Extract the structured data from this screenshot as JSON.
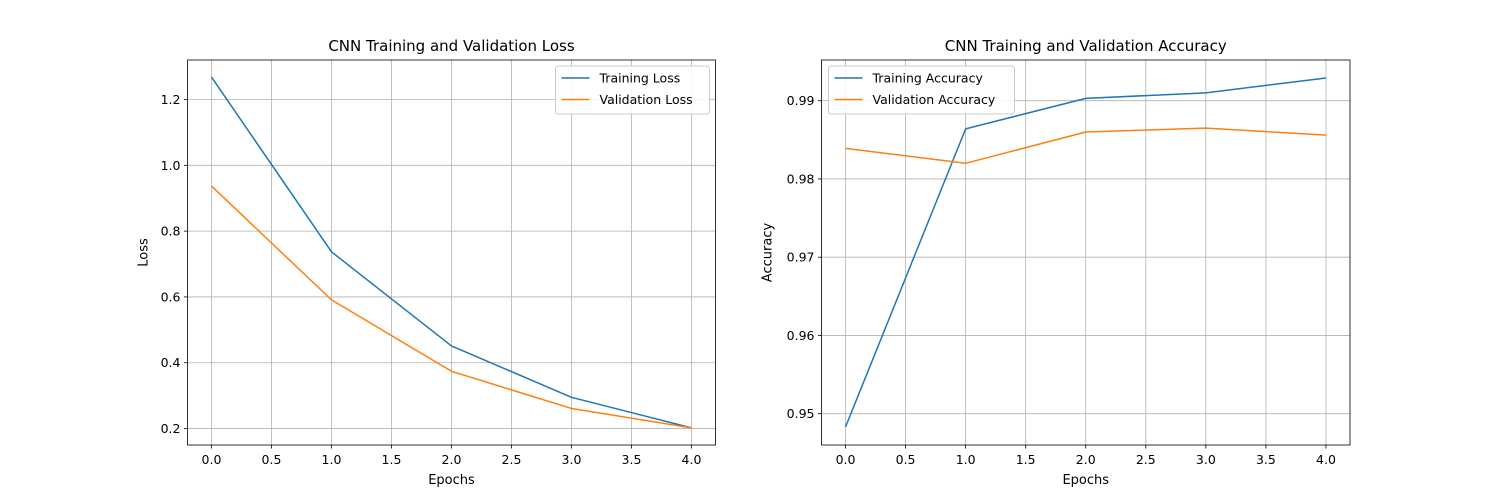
{
  "chart_data": [
    {
      "type": "line",
      "title": "CNN Training and Validation Loss",
      "xlabel": "Epochs",
      "ylabel": "Loss",
      "xlim": [
        -0.2,
        4.2
      ],
      "ylim": [
        0.15,
        1.32
      ],
      "xticks": [
        0.0,
        0.5,
        1.0,
        1.5,
        2.0,
        2.5,
        3.0,
        3.5,
        4.0
      ],
      "xtick_labels": [
        "0.0",
        "0.5",
        "1.0",
        "1.5",
        "2.0",
        "2.5",
        "3.0",
        "3.5",
        "4.0"
      ],
      "yticks": [
        0.2,
        0.4,
        0.6,
        0.8,
        1.0,
        1.2
      ],
      "ytick_labels": [
        "0.2",
        "0.4",
        "0.6",
        "0.8",
        "1.0",
        "1.2"
      ],
      "grid": true,
      "legend_position": "top-right",
      "x": [
        0,
        1,
        2,
        3,
        4
      ],
      "series": [
        {
          "name": "Training Loss",
          "values": [
            1.268,
            0.737,
            0.451,
            0.295,
            0.202
          ],
          "color": "#1f77b4"
        },
        {
          "name": "Validation Loss",
          "values": [
            0.937,
            0.591,
            0.374,
            0.261,
            0.202
          ],
          "color": "#ff7f0e"
        }
      ]
    },
    {
      "type": "line",
      "title": "CNN Training and Validation Accuracy",
      "xlabel": "Epochs",
      "ylabel": "Accuracy",
      "xlim": [
        -0.2,
        4.2
      ],
      "ylim": [
        0.946,
        0.9952
      ],
      "xticks": [
        0.0,
        0.5,
        1.0,
        1.5,
        2.0,
        2.5,
        3.0,
        3.5,
        4.0
      ],
      "xtick_labels": [
        "0.0",
        "0.5",
        "1.0",
        "1.5",
        "2.0",
        "2.5",
        "3.0",
        "3.5",
        "4.0"
      ],
      "yticks": [
        0.95,
        0.96,
        0.97,
        0.98,
        0.99
      ],
      "ytick_labels": [
        "0.95",
        "0.96",
        "0.97",
        "0.98",
        "0.99"
      ],
      "grid": true,
      "legend_position": "top-left",
      "x": [
        0,
        1,
        2,
        3,
        4
      ],
      "series": [
        {
          "name": "Training Accuracy",
          "values": [
            0.9483,
            0.9864,
            0.9903,
            0.991,
            0.9929
          ],
          "color": "#1f77b4"
        },
        {
          "name": "Validation Accuracy",
          "values": [
            0.9839,
            0.982,
            0.986,
            0.9865,
            0.9856
          ],
          "color": "#ff7f0e"
        }
      ]
    }
  ]
}
